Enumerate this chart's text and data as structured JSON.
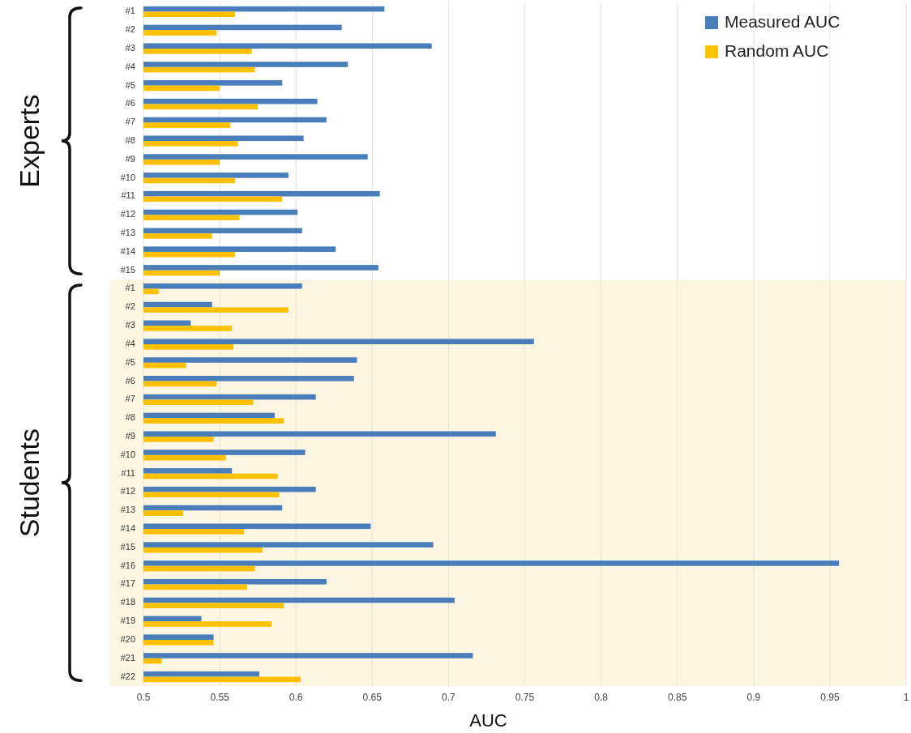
{
  "chart_data": [
    {
      "type": "bar",
      "orientation": "horizontal",
      "ylabel": "Experts",
      "categories": [
        "#1",
        "#2",
        "#3",
        "#4",
        "#5",
        "#6",
        "#7",
        "#8",
        "#9",
        "#10",
        "#11",
        "#12",
        "#13",
        "#14",
        "#15"
      ],
      "series": [
        {
          "name": "Measured AUC",
          "color": "#4a7ebb",
          "values": [
            0.658,
            0.63,
            0.689,
            0.634,
            0.591,
            0.614,
            0.62,
            0.605,
            0.647,
            0.595,
            0.655,
            0.601,
            0.604,
            0.626,
            0.654
          ]
        },
        {
          "name": "Random AUC",
          "color": "#ffc000",
          "values": [
            0.56,
            0.548,
            0.571,
            0.573,
            0.55,
            0.575,
            0.557,
            0.562,
            0.55,
            0.56,
            0.591,
            0.563,
            0.545,
            0.56,
            0.55
          ]
        }
      ],
      "xlim": [
        0.5,
        1
      ],
      "xticks": [
        0.5,
        0.55,
        0.6,
        0.65,
        0.7,
        0.75,
        0.8,
        0.85,
        0.9,
        0.95,
        1
      ],
      "tick_labels": "y",
      "grid": "x",
      "legend": "top right"
    },
    {
      "type": "bar",
      "orientation": "horizontal",
      "ylabel": "Students",
      "xlabel": "AUC",
      "categories": [
        "#1",
        "#2",
        "#3",
        "#4",
        "#5",
        "#6",
        "#7",
        "#8",
        "#9",
        "#10",
        "#11",
        "#12",
        "#13",
        "#14",
        "#15",
        "#16",
        "#17",
        "#18",
        "#19",
        "#20",
        "#21",
        "#22"
      ],
      "series": [
        {
          "color": "#4a7ebb",
          "values": [
            0.604,
            0.545,
            0.531,
            0.756,
            0.64,
            0.638,
            0.613,
            0.586,
            0.731,
            0.606,
            0.558,
            0.613,
            0.591,
            0.649,
            0.69,
            0.956,
            0.62,
            0.704,
            0.538,
            0.546,
            0.716,
            0.576
          ]
        },
        {
          "color": "#ffc000",
          "values": [
            0.51,
            0.595,
            0.558,
            0.559,
            0.528,
            0.548,
            0.572,
            0.592,
            0.546,
            0.554,
            0.588,
            0.589,
            0.526,
            0.566,
            0.578,
            0.573,
            0.568,
            0.592,
            0.584,
            0.546,
            0.512,
            0.603
          ]
        }
      ],
      "xlim": [
        0.5,
        1
      ],
      "xticks": [
        0.5,
        0.55,
        0.6,
        0.65,
        0.7,
        0.75,
        0.8,
        0.85,
        0.9,
        0.95,
        1
      ],
      "grid": "x"
    }
  ]
}
